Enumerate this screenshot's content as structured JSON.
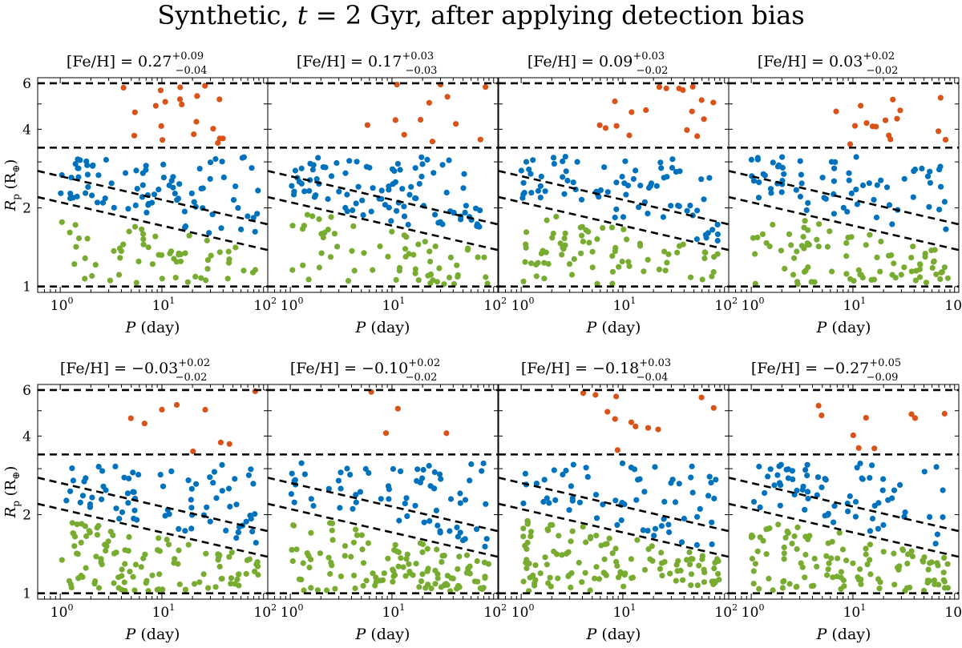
{
  "figure": {
    "title_prefix": "Synthetic, ",
    "title_var": "t",
    "title_suffix": " = 2 Gyr, after applying detection bias"
  },
  "colors": {
    "small": "#77ac30",
    "medium": "#0072bd",
    "large": "#d95319",
    "line": "#000000"
  },
  "chart_data": {
    "type": "scatter",
    "xlabel_var": "P",
    "xlabel_unit": "(day)",
    "ylabel_var": "R",
    "ylabel_sub": "p",
    "ylabel_unit": "(R",
    "ylabel_unit_sub": "⊕",
    "ylabel_unit_close": ")",
    "xscale": "log",
    "yscale": "log",
    "xlim": [
      0.6,
      110
    ],
    "ylim": [
      0.95,
      6.3
    ],
    "x_ticks": [
      {
        "value": 1,
        "base": "10",
        "exp": "0"
      },
      {
        "value": 10,
        "base": "10",
        "exp": "1"
      },
      {
        "value": 100,
        "base": "10",
        "exp": "2"
      }
    ],
    "y_ticks": [
      {
        "value": 1,
        "label": "1"
      },
      {
        "value": 2,
        "label": "2"
      },
      {
        "value": 4,
        "label": "4"
      },
      {
        "value": 6,
        "label": "6"
      }
    ],
    "horizontal_lines": [
      1,
      3.4,
      6
    ],
    "valley_lines": [
      {
        "x1": 0.6,
        "y1": 2.77,
        "x2": 110,
        "y2": 1.73
      },
      {
        "x1": 0.6,
        "y1": 2.2,
        "x2": 110,
        "y2": 1.38
      }
    ],
    "panels": [
      {
        "label": "[Fe/H] = ",
        "value": "0.27",
        "plus": "+0.09",
        "minus": "−0.04",
        "seed": 11,
        "n_small": 60,
        "n_medium": 85,
        "n_large": 20
      },
      {
        "label": "[Fe/H] = ",
        "value": "0.17",
        "plus": "+0.03",
        "minus": "−0.03",
        "seed": 23,
        "n_small": 65,
        "n_medium": 95,
        "n_large": 12
      },
      {
        "label": "[Fe/H] = ",
        "value": "0.09",
        "plus": "+0.03",
        "minus": "−0.02",
        "seed": 37,
        "n_small": 75,
        "n_medium": 80,
        "n_large": 18
      },
      {
        "label": "[Fe/H] = ",
        "value": "0.03",
        "plus": "+0.02",
        "minus": "−0.02",
        "seed": 41,
        "n_small": 85,
        "n_medium": 70,
        "n_large": 16
      },
      {
        "label": "[Fe/H] = ",
        "value": "−0.03",
        "plus": "+0.02",
        "minus": "−0.02",
        "seed": 53,
        "n_small": 110,
        "n_medium": 75,
        "n_large": 9
      },
      {
        "label": "[Fe/H] = ",
        "value": "−0.10",
        "plus": "+0.02",
        "minus": "−0.02",
        "seed": 67,
        "n_small": 120,
        "n_medium": 70,
        "n_large": 4
      },
      {
        "label": "[Fe/H] = ",
        "value": "−0.18",
        "plus": "+0.03",
        "minus": "−0.04",
        "seed": 79,
        "n_small": 120,
        "n_medium": 65,
        "n_large": 12
      },
      {
        "label": "[Fe/H] = ",
        "value": "−0.27",
        "plus": "+0.05",
        "minus": "−0.09",
        "seed": 89,
        "n_small": 115,
        "n_medium": 70,
        "n_large": 9
      }
    ]
  }
}
